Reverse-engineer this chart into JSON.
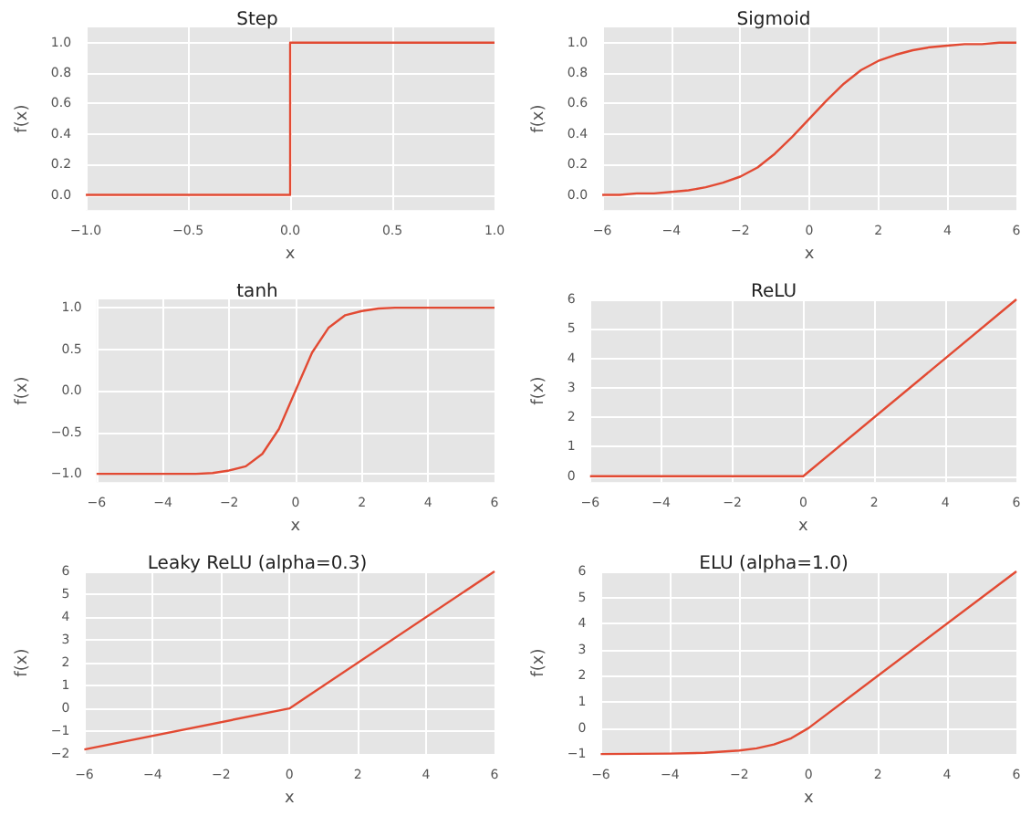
{
  "chart_data": [
    {
      "type": "line",
      "title": "Step",
      "xlabel": "x",
      "ylabel": "f(x)",
      "x": [
        -1,
        0,
        0,
        1
      ],
      "values": [
        0,
        0,
        1,
        1
      ],
      "color": "#e24a33",
      "marker": "none",
      "grid": true,
      "xlim": [
        -1,
        1
      ],
      "xticks": [
        {
          "value": -1,
          "label": "−1.0"
        },
        {
          "value": -0.5,
          "label": "−0.5"
        },
        {
          "value": 0,
          "label": "0.0"
        },
        {
          "value": 0.5,
          "label": "0.5"
        },
        {
          "value": 1,
          "label": "1.0"
        }
      ],
      "ylim": [
        -0.1,
        1.1
      ],
      "yticks": [
        {
          "value": 0,
          "label": "0.0"
        },
        {
          "value": 0.2,
          "label": "0.2"
        },
        {
          "value": 0.4,
          "label": "0.4"
        },
        {
          "value": 0.6,
          "label": "0.6"
        },
        {
          "value": 0.8,
          "label": "0.8"
        },
        {
          "value": 1,
          "label": "1.0"
        }
      ]
    },
    {
      "type": "line",
      "title": "Sigmoid",
      "xlabel": "x",
      "ylabel": "f(x)",
      "x": [
        -6,
        -5.5,
        -5,
        -4.5,
        -4,
        -3.5,
        -3,
        -2.5,
        -2,
        -1.5,
        -1,
        -0.5,
        0,
        0.5,
        1,
        1.5,
        2,
        2.5,
        3,
        3.5,
        4,
        4.5,
        5,
        5.5,
        6
      ],
      "values": [
        0.0,
        0.0,
        0.01,
        0.01,
        0.02,
        0.03,
        0.05,
        0.08,
        0.12,
        0.18,
        0.27,
        0.38,
        0.5,
        0.62,
        0.73,
        0.82,
        0.88,
        0.92,
        0.95,
        0.97,
        0.98,
        0.99,
        0.99,
        1.0,
        1.0
      ],
      "color": "#e24a33",
      "marker": "none",
      "grid": true,
      "xlim": [
        -6,
        6
      ],
      "xticks": [
        {
          "value": -6,
          "label": "−6"
        },
        {
          "value": -4,
          "label": "−4"
        },
        {
          "value": -2,
          "label": "−2"
        },
        0,
        2,
        4,
        6
      ],
      "ylim": [
        -0.1,
        1.1
      ],
      "yticks": [
        {
          "value": 0,
          "label": "0.0"
        },
        {
          "value": 0.2,
          "label": "0.2"
        },
        {
          "value": 0.4,
          "label": "0.4"
        },
        {
          "value": 0.6,
          "label": "0.6"
        },
        {
          "value": 0.8,
          "label": "0.8"
        },
        {
          "value": 1,
          "label": "1.0"
        }
      ]
    },
    {
      "type": "line",
      "title": "tanh",
      "xlabel": "x",
      "ylabel": "f(x)",
      "x": [
        -6,
        -5,
        -4,
        -3,
        -2.5,
        -2,
        -1.5,
        -1,
        -0.5,
        0,
        0.5,
        1,
        1.5,
        2,
        2.5,
        3,
        4,
        5,
        6
      ],
      "values": [
        -1,
        -1,
        -1,
        -1,
        -0.99,
        -0.96,
        -0.91,
        -0.76,
        -0.46,
        0,
        0.46,
        0.76,
        0.91,
        0.96,
        0.99,
        1,
        1,
        1,
        1
      ],
      "color": "#e24a33",
      "marker": "none",
      "grid": true,
      "xlim": [
        -6,
        6
      ],
      "xticks": [
        {
          "value": -6,
          "label": "−6"
        },
        {
          "value": -4,
          "label": "−4"
        },
        {
          "value": -2,
          "label": "−2"
        },
        0,
        2,
        4,
        6
      ],
      "ylim": [
        -1.1,
        1.1
      ],
      "yticks": [
        {
          "value": -1,
          "label": "−1.0"
        },
        {
          "value": -0.5,
          "label": "−0.5"
        },
        {
          "value": 0,
          "label": "0.0"
        },
        {
          "value": 0.5,
          "label": "0.5"
        },
        {
          "value": 1,
          "label": "1.0"
        }
      ]
    },
    {
      "type": "line",
      "title": "ReLU",
      "xlabel": "x",
      "ylabel": "f(x)",
      "x": [
        -6,
        0,
        6
      ],
      "values": [
        0,
        0,
        6
      ],
      "color": "#e24a33",
      "marker": "none",
      "grid": true,
      "xlim": [
        -6,
        6
      ],
      "xticks": [
        {
          "value": -6,
          "label": "−6"
        },
        {
          "value": -4,
          "label": "−4"
        },
        {
          "value": -2,
          "label": "−2"
        },
        0,
        2,
        4,
        6
      ],
      "ylim": [
        -0.2,
        6
      ],
      "yticks": [
        0,
        1,
        2,
        3,
        4,
        5,
        6
      ]
    },
    {
      "type": "line",
      "title": "Leaky ReLU (alpha=0.3)",
      "xlabel": "x",
      "ylabel": "f(x)",
      "x": [
        -6,
        0,
        6
      ],
      "values": [
        -1.8,
        0,
        6
      ],
      "color": "#e24a33",
      "marker": "none",
      "grid": true,
      "xlim": [
        -6,
        6
      ],
      "xticks": [
        {
          "value": -6,
          "label": "−6"
        },
        {
          "value": -4,
          "label": "−4"
        },
        {
          "value": -2,
          "label": "−2"
        },
        0,
        2,
        4,
        6
      ],
      "ylim": [
        -2,
        6
      ],
      "yticks": [
        {
          "value": -2,
          "label": "−2"
        },
        {
          "value": -1,
          "label": "−1"
        },
        0,
        1,
        2,
        3,
        4,
        5,
        6
      ]
    },
    {
      "type": "line",
      "title": "ELU (alpha=1.0)",
      "xlabel": "x",
      "ylabel": "f(x)",
      "x": [
        -6,
        -5,
        -4,
        -3,
        -2,
        -1.5,
        -1,
        -0.5,
        0,
        6
      ],
      "values": [
        -1.0,
        -0.99,
        -0.98,
        -0.95,
        -0.86,
        -0.78,
        -0.63,
        -0.39,
        0,
        6
      ],
      "color": "#e24a33",
      "marker": "none",
      "grid": true,
      "xlim": [
        -6,
        6
      ],
      "xticks": [
        {
          "value": -6,
          "label": "−6"
        },
        {
          "value": -4,
          "label": "−4"
        },
        {
          "value": -2,
          "label": "−2"
        },
        0,
        2,
        4,
        6
      ],
      "ylim": [
        -1,
        6
      ],
      "yticks": [
        {
          "value": -1,
          "label": "−1"
        },
        0,
        1,
        2,
        3,
        4,
        5,
        6
      ]
    }
  ]
}
